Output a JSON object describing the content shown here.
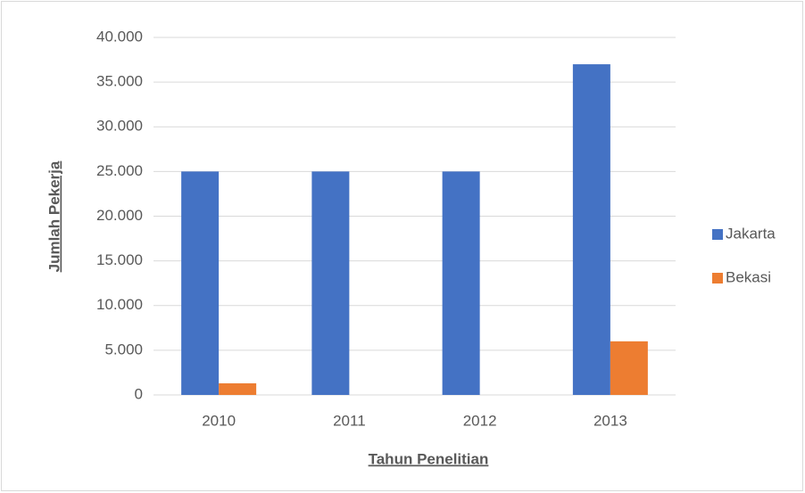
{
  "chart_data": {
    "type": "bar",
    "x_label": "Tahun Penelitian",
    "y_label": "Jumlah Pekerja",
    "categories": [
      "2010",
      "2011",
      "2012",
      "2013"
    ],
    "series": [
      {
        "name": "Jakarta",
        "color": "#4472c4",
        "values": [
          25000,
          25000,
          25000,
          37000
        ]
      },
      {
        "name": "Bekasi",
        "color": "#ed7d31",
        "values": [
          1300,
          0,
          0,
          6000
        ]
      }
    ],
    "ylim": [
      0,
      40000
    ],
    "yticks": [
      0,
      {
        "value": 5000,
        "label": "5.000"
      },
      {
        "value": 10000,
        "label": "10.000"
      },
      {
        "value": 15000,
        "label": "15.000"
      },
      {
        "value": 20000,
        "label": "20.000"
      },
      {
        "value": 25000,
        "label": "25.000"
      },
      {
        "value": 30000,
        "label": "30.000"
      },
      {
        "value": 35000,
        "label": "35.000"
      },
      {
        "value": 40000,
        "label": "40.000"
      }
    ],
    "grid": true,
    "legend": "right"
  }
}
